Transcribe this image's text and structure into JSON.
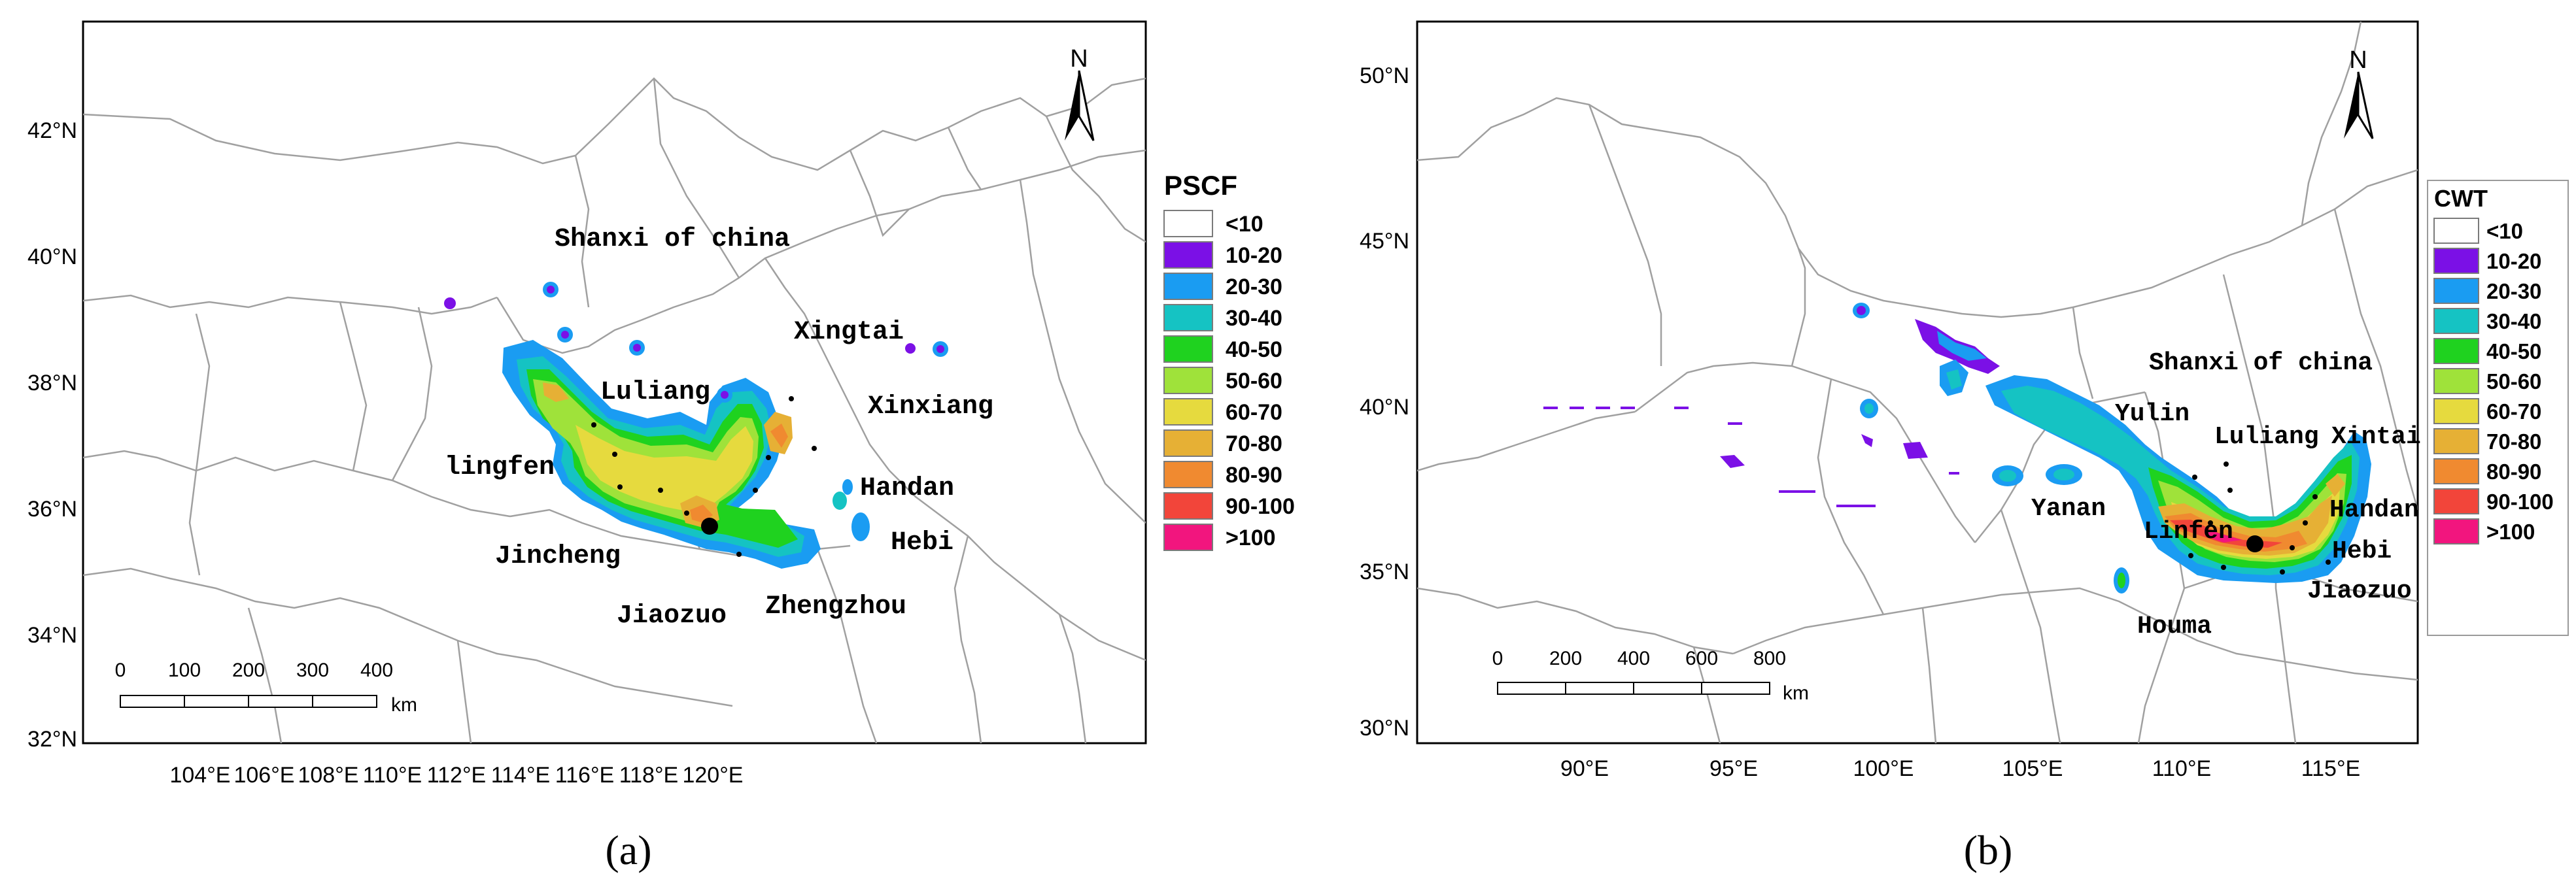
{
  "colors": {
    "frame": "#000000",
    "border": "#9a9a9a",
    "c_lt10": "#ffffff",
    "c_10_20": "#7b10e6",
    "c_20_30": "#1a9cf2",
    "c_30_40": "#15c3c3",
    "c_40_50": "#1fd21f",
    "c_50_60": "#9fe23a",
    "c_60_70": "#e6da3e",
    "c_70_80": "#e6b035",
    "c_80_90": "#f08a30",
    "c_90_100": "#f2453a",
    "c_gt100": "#f2157e"
  },
  "panel_a": {
    "caption": "(a)",
    "legend_title": "PSCF",
    "legend": [
      "<10",
      "10-20",
      "20-30",
      "30-40",
      "40-50",
      "50-60",
      "60-70",
      "70-80",
      "80-90",
      "90-100",
      ">100"
    ],
    "lat_labels": [
      "42°N",
      "40°N",
      "38°N",
      "36°N",
      "34°N",
      "32°N"
    ],
    "lon_labels": [
      "104°E",
      "106°E",
      "108°E",
      "110°E",
      "112°E",
      "114°E",
      "116°E",
      "118°E",
      "120°E"
    ],
    "place_labels": [
      "Shanxi of china",
      "Xingtai",
      "Luliang",
      "Xinxiang",
      "lingfen",
      "Handan",
      "Jincheng",
      "Hebi",
      "Jiaozuo",
      "Zhengzhou"
    ],
    "scale_ticks": [
      "0",
      "100",
      "200",
      "300",
      "400"
    ],
    "scale_unit": "km",
    "north": "N"
  },
  "panel_b": {
    "caption": "(b)",
    "legend_title": "CWT",
    "legend": [
      "<10",
      "10-20",
      "20-30",
      "30-40",
      "40-50",
      "50-60",
      "60-70",
      "70-80",
      "80-90",
      "90-100",
      ">100"
    ],
    "lat_labels": [
      "50°N",
      "45°N",
      "40°N",
      "35°N",
      "30°N"
    ],
    "lon_labels": [
      "90°E",
      "95°E",
      "100°E",
      "105°E",
      "110°E",
      "115°E"
    ],
    "place_labels": [
      "Shanxi of china",
      "Yulin",
      "Luliang",
      "Xintai",
      "Yanan",
      "Linfen",
      "Handan",
      "Hebi",
      "Jiaozuo",
      "Houma"
    ],
    "scale_ticks": [
      "0",
      "200",
      "400",
      "600",
      "800"
    ],
    "scale_unit": "km",
    "north": "N"
  }
}
